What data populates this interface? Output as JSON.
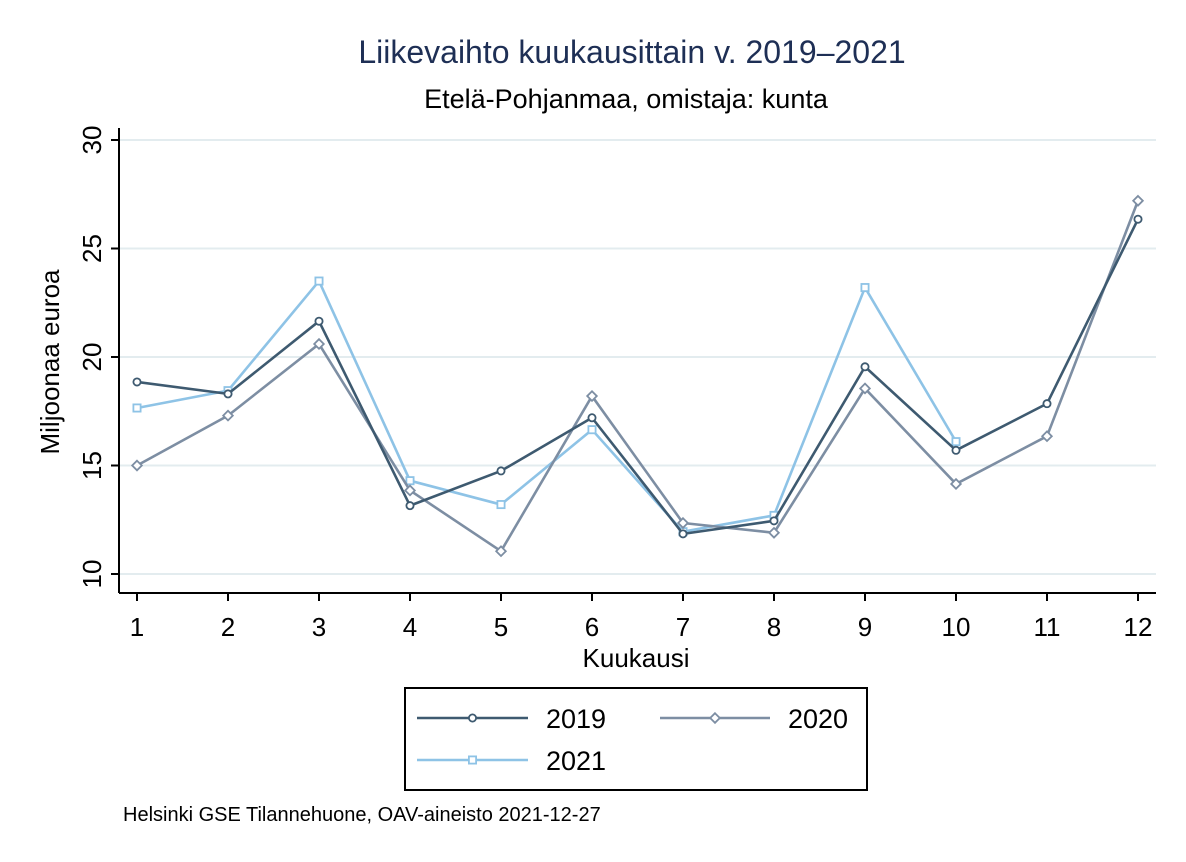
{
  "chart_data": {
    "type": "line",
    "title": "Liikevaihto kuukausittain v. 2019–2021",
    "subtitle": "Etelä-Pohjanmaa, omistaja: kunta",
    "xlabel": "Kuukausi",
    "ylabel": "Miljoonaa euroa",
    "x": [
      1,
      2,
      3,
      4,
      5,
      6,
      7,
      8,
      9,
      10,
      11,
      12
    ],
    "ylim": [
      10,
      30
    ],
    "yticks": [
      10,
      15,
      20,
      25,
      30
    ],
    "grid": true,
    "legend_position": "bottom",
    "series": [
      {
        "name": "2019",
        "color": "#3e5a70",
        "marker": "circle",
        "values": [
          18.85,
          18.3,
          21.65,
          13.15,
          14.75,
          17.2,
          11.85,
          12.45,
          19.55,
          15.7,
          17.85,
          26.35
        ]
      },
      {
        "name": "2020",
        "color": "#7d8ea3",
        "marker": "diamond",
        "values": [
          15.0,
          17.3,
          20.6,
          13.85,
          11.05,
          18.2,
          12.35,
          11.9,
          18.55,
          14.15,
          16.35,
          27.2
        ]
      },
      {
        "name": "2021",
        "color": "#8ec3e6",
        "marker": "square",
        "values": [
          17.65,
          18.45,
          23.5,
          14.3,
          13.2,
          16.65,
          11.95,
          12.7,
          23.2,
          16.1,
          null,
          null
        ]
      }
    ],
    "note": "Helsinki GSE Tilannehuone, OAV-aineisto 2021-12-27"
  }
}
